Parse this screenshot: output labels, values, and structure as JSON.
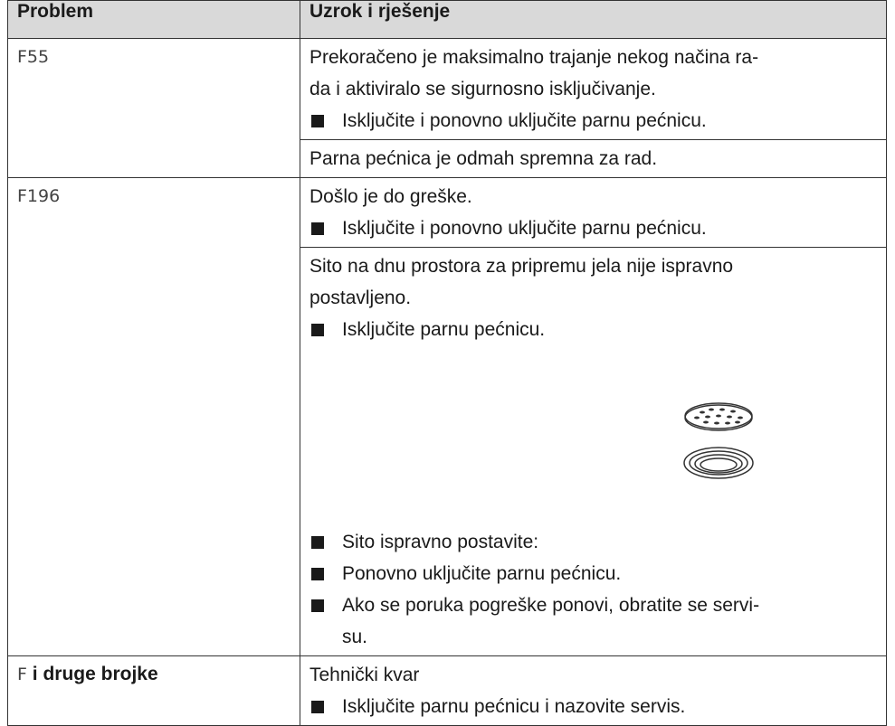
{
  "table": {
    "headers": [
      "Problem",
      "Uzrok i rješenje"
    ],
    "rows": [
      {
        "problem": {
          "code": "F55"
        },
        "blocks": [
          {
            "lines": [
              {
                "text": "Prekoračeno je maksimalno trajanje nekog načina ra-"
              },
              {
                "text": "da i aktiviralo se sigurnosno isključivanje."
              },
              {
                "bullet": "Isključite i ponovno uključite parnu pećnicu."
              }
            ]
          },
          {
            "lines": [
              {
                "text": "Parna pećnica je odmah spremna za rad."
              }
            ]
          }
        ]
      },
      {
        "problem": {
          "code": "F196"
        },
        "blocks": [
          {
            "lines": [
              {
                "text": "Došlo je do greške."
              },
              {
                "bullet": "Isključite i ponovno uključite parnu pećnicu."
              }
            ]
          },
          {
            "lines": [
              {
                "text": "Sito na dnu prostora za pripremu jela nije ispravno"
              },
              {
                "text": "postavljeno."
              },
              {
                "bullet": "Isključite parnu pećnicu."
              }
            ],
            "lines_after_figure": [
              {
                "bullet": "Sito ispravno postavite:"
              },
              {
                "bullet": "Ponovno uključite parnu pećnicu."
              },
              {
                "bullet": "Ako se poruka pogreške ponovi, obratite se servi-"
              },
              {
                "continued": "su."
              }
            ]
          }
        ]
      },
      {
        "problem": {
          "code": "F",
          "label": "i druge brojke"
        },
        "blocks": [
          {
            "lines": [
              {
                "text": "Tehnički kvar"
              },
              {
                "bullet": "Isključite parnu pećnicu i nazovite servis."
              }
            ]
          }
        ]
      }
    ]
  }
}
